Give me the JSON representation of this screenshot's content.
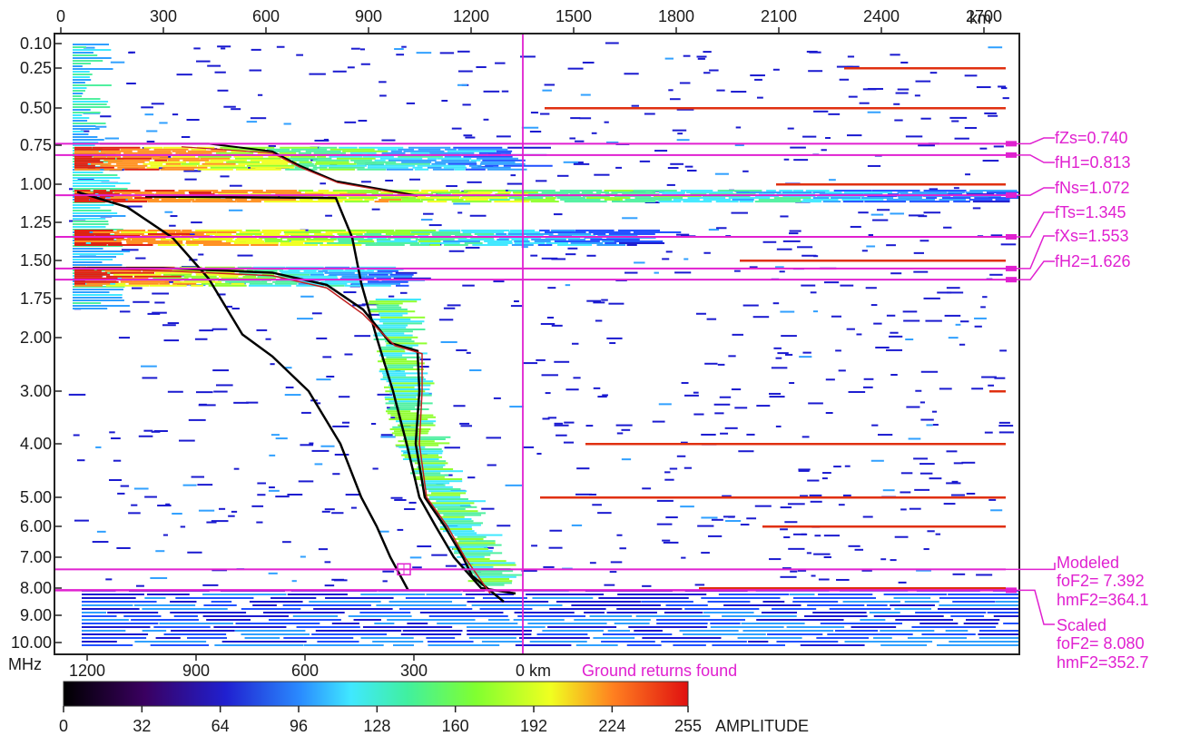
{
  "chart_data": {
    "type": "heatmap",
    "title": "",
    "top_axis": {
      "unit": "km",
      "ticks": [
        "0",
        "300",
        "600",
        "900",
        "1200",
        "1500",
        "1800",
        "2100",
        "2400",
        "2700"
      ],
      "range": [
        0,
        2870
      ]
    },
    "bottom_axis": {
      "label": "MHz",
      "unit_label": "0 km",
      "ticks": [
        "1200",
        "900",
        "600",
        "300"
      ],
      "range": [
        1300,
        0
      ]
    },
    "y_axis": {
      "ticks": [
        "0.10",
        "0.25",
        "0.50",
        "0.75",
        "1.00",
        "1.25",
        "1.50",
        "1.75",
        "2.00",
        "3.00",
        "4.00",
        "5.00",
        "6.00",
        "7.00",
        "8.00",
        "9.00",
        "10.00"
      ],
      "values": [
        0.1,
        0.25,
        0.5,
        0.75,
        1.0,
        1.25,
        1.5,
        1.75,
        2.0,
        3.0,
        4.0,
        5.0,
        6.0,
        7.0,
        8.0,
        9.0,
        10.0
      ]
    },
    "colorbar": {
      "label": "AMPLITUDE",
      "ticks": [
        "0",
        "32",
        "64",
        "96",
        "128",
        "160",
        "192",
        "224",
        "255"
      ],
      "range": [
        0,
        255
      ]
    },
    "ground_note": "Ground returns found",
    "annotations": [
      {
        "label": "fZs=0.740",
        "freq": 0.74
      },
      {
        "label": "fH1=0.813",
        "freq": 0.813
      },
      {
        "label": "fNs=1.072",
        "freq": 1.072
      },
      {
        "label": "fTs=1.345",
        "freq": 1.345
      },
      {
        "label": "fXs=1.553",
        "freq": 1.553
      },
      {
        "label": "fH2=1.626",
        "freq": 1.626
      }
    ],
    "modeled": {
      "title": "Modeled",
      "line1": "foF2= 7.392",
      "line2": "hmF2=364.1",
      "foF2": 7.392,
      "hmF2": 364.1
    },
    "scaled": {
      "title": "Scaled",
      "line1": "foF2= 8.080",
      "line2": "hmF2=352.7",
      "foF2": 8.08,
      "hmF2": 352.7
    },
    "colors": {
      "marker": "#e020d0",
      "trace": "#000000",
      "ground": "#e03010"
    }
  }
}
